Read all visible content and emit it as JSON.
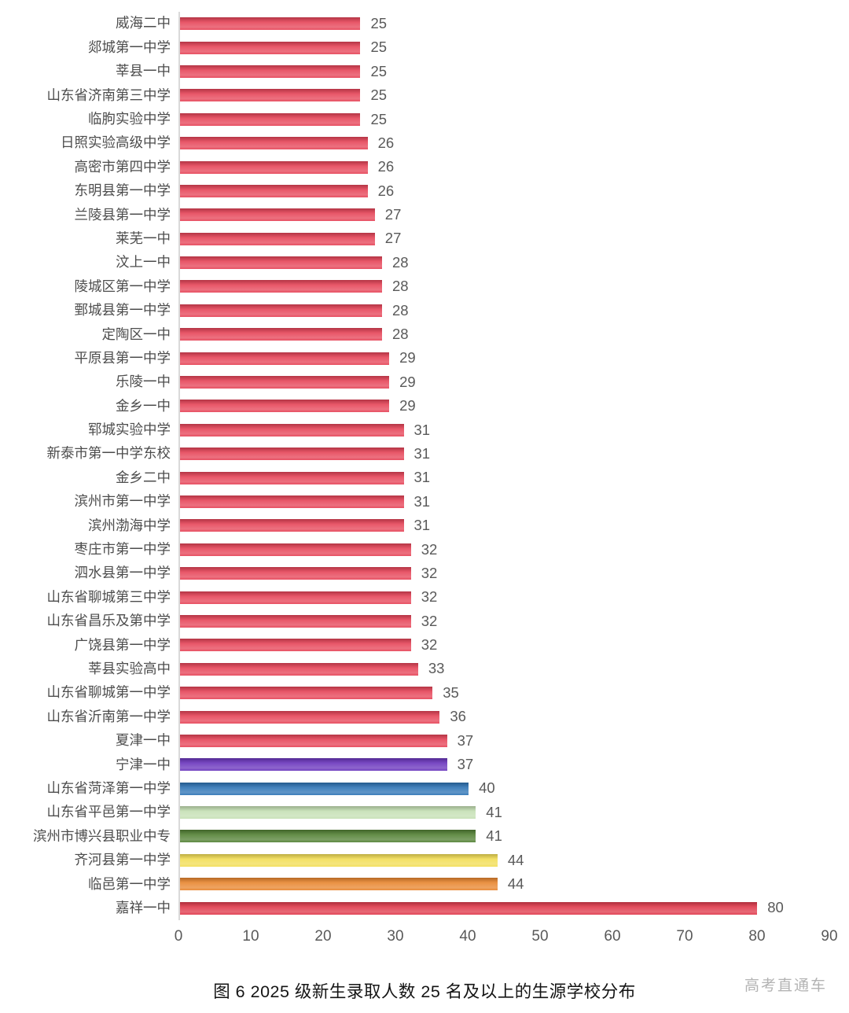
{
  "chart_data": {
    "type": "bar",
    "orientation": "horizontal",
    "title": "图 6 2025 级新生录取人数 25 名及以上的生源学校分布",
    "watermark": "高考直通车",
    "xlabel": "",
    "ylabel": "",
    "xlim": [
      0,
      90
    ],
    "x_ticks": [
      0,
      10,
      20,
      30,
      40,
      50,
      60,
      70,
      80,
      90
    ],
    "grid": false,
    "legend": "none",
    "value_labels_shown": true,
    "categories": [
      "威海二中",
      "郯城第一中学",
      "莘县一中",
      "山东省济南第三中学",
      "临朐实验中学",
      "日照实验高级中学",
      "高密市第四中学",
      "东明县第一中学",
      "兰陵县第一中学",
      "莱芜一中",
      "汶上一中",
      "陵城区第一中学",
      "鄄城县第一中学",
      "定陶区一中",
      "平原县第一中学",
      "乐陵一中",
      "金乡一中",
      "郓城实验中学",
      "新泰市第一中学东校",
      "金乡二中",
      "滨州市第一中学",
      "滨州渤海中学",
      "枣庄市第一中学",
      "泗水县第一中学",
      "山东省聊城第三中学",
      "山东省昌乐及第中学",
      "广饶县第一中学",
      "莘县实验高中",
      "山东省聊城第一中学",
      "山东省沂南第一中学",
      "夏津一中",
      "宁津一中",
      "山东省菏泽第一中学",
      "山东省平邑第一中学",
      "滨州市博兴县职业中专",
      "齐河县第一中学",
      "临邑第一中学",
      "嘉祥一中"
    ],
    "values": [
      25,
      25,
      25,
      25,
      25,
      26,
      26,
      26,
      27,
      27,
      28,
      28,
      28,
      28,
      29,
      29,
      29,
      31,
      31,
      31,
      31,
      31,
      32,
      32,
      32,
      32,
      32,
      33,
      35,
      36,
      37,
      37,
      40,
      41,
      41,
      44,
      44,
      80
    ],
    "bar_colors": [
      "#e64458",
      "#e64458",
      "#e64458",
      "#e64458",
      "#e64458",
      "#e64458",
      "#e64458",
      "#e64458",
      "#e64458",
      "#e64458",
      "#e64458",
      "#e64458",
      "#e64458",
      "#e64458",
      "#e64458",
      "#e64458",
      "#e64458",
      "#e64458",
      "#e64458",
      "#e64458",
      "#e64458",
      "#e64458",
      "#e64458",
      "#e64458",
      "#e64458",
      "#e64458",
      "#e64458",
      "#e64458",
      "#e64458",
      "#e64458",
      "#e64458",
      "#6a35bd",
      "#2e74b5",
      "#c5e0b4",
      "#538135",
      "#f2dd55",
      "#e8862f",
      "#e03a4c"
    ]
  },
  "colors": {
    "axis_line": "#d9d9d9",
    "category_label": "#4d4d4d",
    "value_label": "#595959",
    "tick_label": "#595959",
    "caption": "#141414",
    "watermark": "#b3b3b3",
    "background": "#ffffff"
  }
}
